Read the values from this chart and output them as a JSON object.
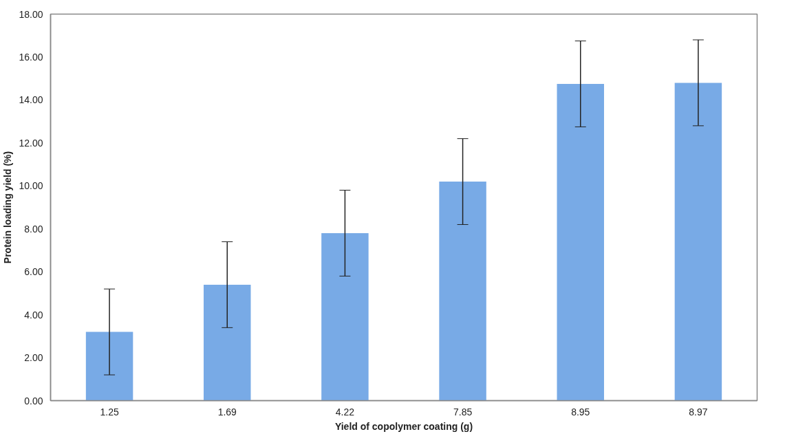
{
  "chart_data": {
    "type": "bar",
    "xlabel": "Yield of copolymer coating (g)",
    "ylabel": "Protein loading yield (%)",
    "categories": [
      "1.25",
      "1.69",
      "4.22",
      "7.85",
      "8.95",
      "8.97"
    ],
    "values": [
      3.2,
      5.4,
      7.8,
      10.2,
      14.75,
      14.8
    ],
    "errors": [
      2.0,
      2.0,
      2.0,
      2.0,
      2.0,
      2.0
    ],
    "color": "#78aae6",
    "ylim": [
      0,
      18
    ],
    "yticks": [
      {
        "value": 0,
        "label": "0.00"
      },
      {
        "value": 2,
        "label": "2.00"
      },
      {
        "value": 4,
        "label": "4.00"
      },
      {
        "value": 6,
        "label": "6.00"
      },
      {
        "value": 8,
        "label": "8.00"
      },
      {
        "value": 10,
        "label": "10.00"
      },
      {
        "value": 12,
        "label": "12.00"
      },
      {
        "value": 14,
        "label": "14.00"
      },
      {
        "value": 16,
        "label": "16.00"
      },
      {
        "value": 18,
        "label": "18.00"
      }
    ],
    "grid": false
  }
}
